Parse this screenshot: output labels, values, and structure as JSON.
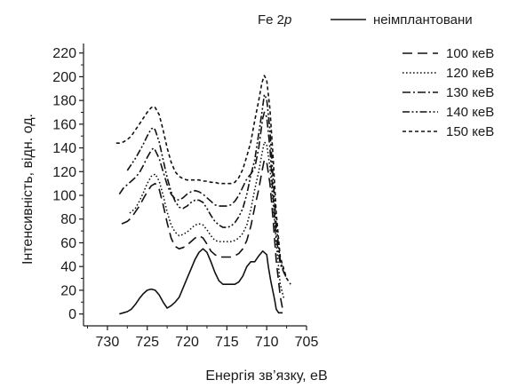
{
  "chart_data": {
    "type": "line",
    "title": "Fe 2",
    "title_italic": "p",
    "xlabel": "Енергія зв’язку, еВ",
    "ylabel": "Інтенсивність, відн. од.",
    "xlim": [
      733,
      705
    ],
    "ylim": [
      -10,
      228
    ],
    "x_ticks": [
      730,
      725,
      720,
      715,
      710,
      705
    ],
    "y_ticks": [
      0,
      20,
      40,
      60,
      80,
      100,
      120,
      140,
      160,
      180,
      200,
      220
    ],
    "grid": false,
    "legend_position": "top-right",
    "series": [
      {
        "name": "неімплантовани",
        "style": "solid",
        "points": [
          [
            728.5,
            0
          ],
          [
            728,
            1
          ],
          [
            727.5,
            2
          ],
          [
            727,
            4
          ],
          [
            726.5,
            8
          ],
          [
            726,
            13
          ],
          [
            725.5,
            17
          ],
          [
            725,
            20
          ],
          [
            724.5,
            21
          ],
          [
            724,
            20
          ],
          [
            723.5,
            16
          ],
          [
            723,
            10
          ],
          [
            722.5,
            5
          ],
          [
            722,
            7
          ],
          [
            721.5,
            10
          ],
          [
            721,
            14
          ],
          [
            720.5,
            22
          ],
          [
            720,
            30
          ],
          [
            719.5,
            38
          ],
          [
            719,
            46
          ],
          [
            718.5,
            52
          ],
          [
            718,
            55
          ],
          [
            717.5,
            52
          ],
          [
            717,
            44
          ],
          [
            716.5,
            35
          ],
          [
            716,
            28
          ],
          [
            715.5,
            25
          ],
          [
            715,
            25
          ],
          [
            714.5,
            25
          ],
          [
            714,
            25
          ],
          [
            713.5,
            27
          ],
          [
            713,
            32
          ],
          [
            712.5,
            40
          ],
          [
            712,
            44
          ],
          [
            711.5,
            44
          ],
          [
            711,
            49
          ],
          [
            710.5,
            53
          ],
          [
            710,
            50
          ],
          [
            709.8,
            40
          ],
          [
            709.5,
            28
          ],
          [
            709,
            12
          ],
          [
            708.8,
            4
          ],
          [
            708.5,
            1
          ],
          [
            708,
            1
          ]
        ]
      },
      {
        "name": "100 кеВ",
        "style": "longdash",
        "points": [
          [
            728.2,
            76
          ],
          [
            727.5,
            78
          ],
          [
            727,
            81
          ],
          [
            726.5,
            86
          ],
          [
            726,
            91
          ],
          [
            725.5,
            97
          ],
          [
            725,
            103
          ],
          [
            724.5,
            108
          ],
          [
            724,
            110
          ],
          [
            723.5,
            105
          ],
          [
            723,
            92
          ],
          [
            722.5,
            77
          ],
          [
            722,
            64
          ],
          [
            721.5,
            57
          ],
          [
            721,
            55
          ],
          [
            720.5,
            56
          ],
          [
            720,
            58
          ],
          [
            719.5,
            61
          ],
          [
            719,
            64
          ],
          [
            718.5,
            66
          ],
          [
            718,
            64
          ],
          [
            717.5,
            59
          ],
          [
            717,
            53
          ],
          [
            716.5,
            50
          ],
          [
            716,
            48
          ],
          [
            715.5,
            48
          ],
          [
            715,
            48
          ],
          [
            714.5,
            48
          ],
          [
            714,
            49
          ],
          [
            713.5,
            51
          ],
          [
            713,
            55
          ],
          [
            712.5,
            62
          ],
          [
            712,
            74
          ],
          [
            711.5,
            90
          ],
          [
            711,
            105
          ],
          [
            710.6,
            120
          ],
          [
            710.3,
            130
          ],
          [
            710,
            128
          ],
          [
            709.6,
            110
          ],
          [
            709.2,
            80
          ],
          [
            708.8,
            45
          ],
          [
            708.3,
            15
          ],
          [
            708,
            4
          ]
        ]
      },
      {
        "name": "120 кеВ",
        "style": "dot",
        "points": [
          [
            727.2,
            85
          ],
          [
            726.5,
            89
          ],
          [
            726,
            95
          ],
          [
            725.5,
            102
          ],
          [
            725,
            110
          ],
          [
            724.5,
            116
          ],
          [
            724,
            118
          ],
          [
            723.5,
            112
          ],
          [
            723,
            100
          ],
          [
            722.5,
            86
          ],
          [
            722,
            75
          ],
          [
            721.5,
            69
          ],
          [
            721,
            66
          ],
          [
            720.5,
            67
          ],
          [
            720,
            69
          ],
          [
            719.5,
            72
          ],
          [
            719,
            75
          ],
          [
            718.5,
            76
          ],
          [
            718,
            75
          ],
          [
            717.5,
            71
          ],
          [
            717,
            66
          ],
          [
            716.5,
            62
          ],
          [
            716,
            61
          ],
          [
            715.5,
            61
          ],
          [
            715,
            61
          ],
          [
            714.5,
            61
          ],
          [
            714,
            62
          ],
          [
            713.5,
            64
          ],
          [
            713,
            68
          ],
          [
            712.5,
            75
          ],
          [
            712,
            88
          ],
          [
            711.5,
            105
          ],
          [
            711,
            120
          ],
          [
            710.6,
            135
          ],
          [
            710.3,
            145
          ],
          [
            710,
            143
          ],
          [
            709.6,
            124
          ],
          [
            709.2,
            94
          ],
          [
            708.8,
            60
          ],
          [
            708.3,
            25
          ],
          [
            707.8,
            12
          ]
        ]
      },
      {
        "name": "130 кеВ",
        "style": "dashdot",
        "points": [
          [
            728.5,
            101
          ],
          [
            728,
            106
          ],
          [
            727.5,
            109
          ],
          [
            727,
            112
          ],
          [
            726.5,
            115
          ],
          [
            726,
            119
          ],
          [
            725.5,
            125
          ],
          [
            725,
            132
          ],
          [
            724.5,
            138
          ],
          [
            724.2,
            140
          ],
          [
            724,
            138
          ],
          [
            723.5,
            131
          ],
          [
            723,
            120
          ],
          [
            722.5,
            109
          ],
          [
            722,
            101
          ],
          [
            721.5,
            97
          ],
          [
            721,
            96
          ],
          [
            720.5,
            98
          ],
          [
            720,
            101
          ],
          [
            719.5,
            103
          ],
          [
            719,
            104
          ],
          [
            718.5,
            103
          ],
          [
            718,
            101
          ],
          [
            717.5,
            98
          ],
          [
            717,
            95
          ],
          [
            716.5,
            92
          ],
          [
            716,
            91
          ],
          [
            715.5,
            91
          ],
          [
            715,
            91
          ],
          [
            714.5,
            92
          ],
          [
            714,
            95
          ],
          [
            713.5,
            100
          ],
          [
            713,
            107
          ],
          [
            712.5,
            114
          ],
          [
            712,
            118
          ],
          [
            711.5,
            123
          ],
          [
            711,
            140
          ],
          [
            710.5,
            165
          ],
          [
            710.3,
            170
          ],
          [
            710,
            166
          ],
          [
            709.6,
            140
          ],
          [
            709.2,
            100
          ],
          [
            708.8,
            65
          ],
          [
            708.3,
            42
          ],
          [
            707.5,
            30
          ]
        ]
      },
      {
        "name": "140 кеВ",
        "style": "dashdotdot",
        "points": [
          [
            727.5,
            121
          ],
          [
            727,
            126
          ],
          [
            726.5,
            131
          ],
          [
            726,
            137
          ],
          [
            725.5,
            143
          ],
          [
            725,
            150
          ],
          [
            724.5,
            156
          ],
          [
            724.2,
            157
          ],
          [
            724,
            155
          ],
          [
            723.5,
            145
          ],
          [
            723,
            130
          ],
          [
            722.5,
            115
          ],
          [
            722,
            103
          ],
          [
            721.5,
            95
          ],
          [
            721,
            90
          ],
          [
            720.5,
            89
          ],
          [
            720,
            91
          ],
          [
            719.5,
            94
          ],
          [
            719,
            96
          ],
          [
            718.5,
            96
          ],
          [
            718,
            94
          ],
          [
            717.5,
            89
          ],
          [
            717,
            83
          ],
          [
            716.5,
            78
          ],
          [
            716,
            75
          ],
          [
            715.5,
            73
          ],
          [
            715,
            73
          ],
          [
            714.5,
            74
          ],
          [
            714,
            77
          ],
          [
            713.5,
            82
          ],
          [
            713,
            89
          ],
          [
            712.5,
            101
          ],
          [
            712,
            117
          ],
          [
            711.5,
            130
          ],
          [
            711,
            152
          ],
          [
            710.6,
            170
          ],
          [
            710.3,
            185
          ],
          [
            710,
            181
          ],
          [
            709.6,
            155
          ],
          [
            709.2,
            115
          ],
          [
            708.8,
            75
          ],
          [
            708.3,
            45
          ],
          [
            707.8,
            34
          ]
        ]
      },
      {
        "name": "150 кеВ",
        "style": "shortdash",
        "points": [
          [
            728.9,
            144
          ],
          [
            728.5,
            144
          ],
          [
            728,
            145
          ],
          [
            727.5,
            147
          ],
          [
            727,
            150
          ],
          [
            726.5,
            155
          ],
          [
            726,
            160
          ],
          [
            725.5,
            165
          ],
          [
            725,
            170
          ],
          [
            724.5,
            174
          ],
          [
            724.2,
            175
          ],
          [
            724,
            174
          ],
          [
            723.5,
            168
          ],
          [
            723,
            155
          ],
          [
            722.5,
            140
          ],
          [
            722,
            128
          ],
          [
            721.5,
            120
          ],
          [
            721,
            116
          ],
          [
            720.5,
            114
          ],
          [
            720,
            113
          ],
          [
            719.5,
            113
          ],
          [
            719,
            113
          ],
          [
            718.5,
            113
          ],
          [
            718,
            112
          ],
          [
            717.5,
            112
          ],
          [
            717,
            111
          ],
          [
            716.5,
            111
          ],
          [
            716,
            110
          ],
          [
            715.5,
            110
          ],
          [
            715,
            110
          ],
          [
            714.5,
            110
          ],
          [
            714,
            111
          ],
          [
            713.5,
            115
          ],
          [
            713,
            122
          ],
          [
            712.5,
            133
          ],
          [
            712,
            145
          ],
          [
            711.5,
            163
          ],
          [
            711,
            180
          ],
          [
            710.6,
            195
          ],
          [
            710.3,
            201
          ],
          [
            710,
            197
          ],
          [
            709.6,
            173
          ],
          [
            709.2,
            133
          ],
          [
            708.8,
            85
          ],
          [
            708.3,
            48
          ],
          [
            707.5,
            30
          ],
          [
            707,
            25
          ]
        ]
      }
    ]
  }
}
